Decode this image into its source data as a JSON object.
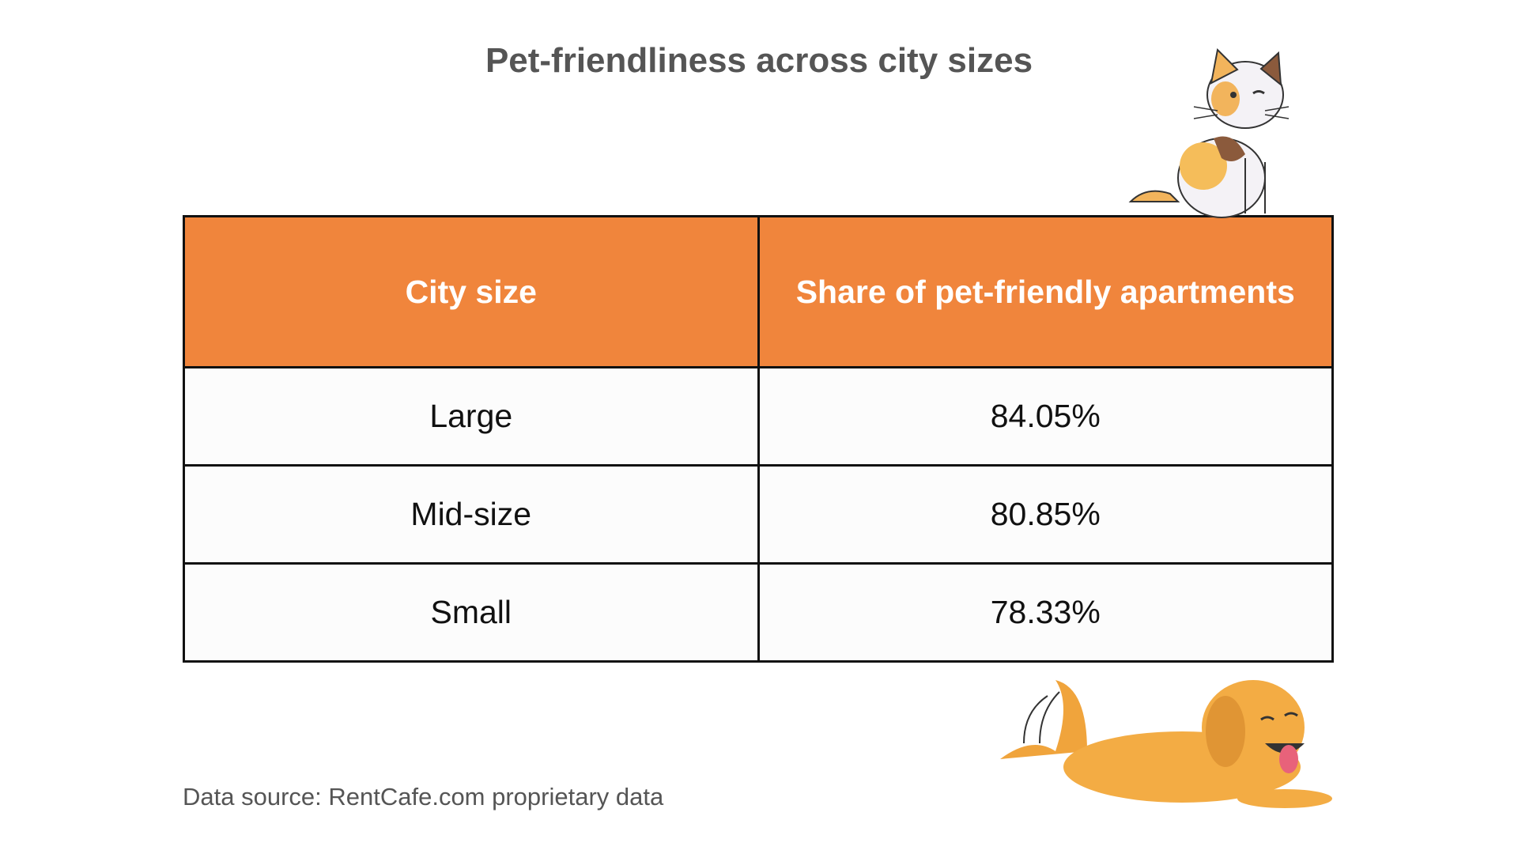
{
  "title": "Pet-friendliness across city sizes",
  "table": {
    "header": [
      "City size",
      "Share of pet-friendly apartments"
    ],
    "rows": [
      [
        "Large",
        "84.05%"
      ],
      [
        "Mid-size",
        "80.85%"
      ],
      [
        "Small",
        "78.33%"
      ]
    ]
  },
  "source": "Data source: RentCafe.com proprietary data"
}
